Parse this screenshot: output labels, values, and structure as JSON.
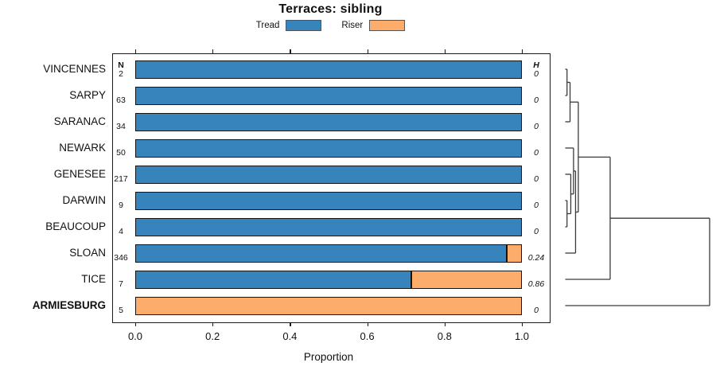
{
  "title": "Terraces: sibling",
  "legend": {
    "items": [
      {
        "label": "Tread",
        "color": "#3784bd"
      },
      {
        "label": "Riser",
        "color": "#fbad69"
      }
    ]
  },
  "columns": {
    "n_header": "N",
    "h_header": "H"
  },
  "x_axis": {
    "label": "Proportion",
    "ticks": [
      "0.0",
      "0.2",
      "0.4",
      "0.6",
      "0.8",
      "1.0"
    ],
    "range": [
      0,
      1
    ]
  },
  "rows": [
    {
      "label": "VINCENNES",
      "n": 2,
      "tread": 1.0,
      "riser": 0.0,
      "h": "0",
      "emphasis": false
    },
    {
      "label": "SARPY",
      "n": 63,
      "tread": 1.0,
      "riser": 0.0,
      "h": "0",
      "emphasis": false
    },
    {
      "label": "SARANAC",
      "n": 34,
      "tread": 1.0,
      "riser": 0.0,
      "h": "0",
      "emphasis": false
    },
    {
      "label": "NEWARK",
      "n": 50,
      "tread": 1.0,
      "riser": 0.0,
      "h": "0",
      "emphasis": false
    },
    {
      "label": "GENESEE",
      "n": 217,
      "tread": 1.0,
      "riser": 0.0,
      "h": "0",
      "emphasis": false
    },
    {
      "label": "DARWIN",
      "n": 9,
      "tread": 1.0,
      "riser": 0.0,
      "h": "0",
      "emphasis": false
    },
    {
      "label": "BEAUCOUP",
      "n": 4,
      "tread": 1.0,
      "riser": 0.0,
      "h": "0",
      "emphasis": false
    },
    {
      "label": "SLOAN",
      "n": 346,
      "tread": 0.96,
      "riser": 0.04,
      "h": "0.24",
      "emphasis": false
    },
    {
      "label": "TICE",
      "n": 7,
      "tread": 0.714,
      "riser": 0.286,
      "h": "0.86",
      "emphasis": false
    },
    {
      "label": "ARMIESBURG",
      "n": 5,
      "tread": 0.0,
      "riser": 1.0,
      "h": "0",
      "emphasis": true
    }
  ],
  "chart_data": {
    "type": "bar",
    "orientation": "horizontal",
    "stacked": true,
    "title": "Terraces: sibling",
    "xlabel": "Proportion",
    "xlim": [
      0,
      1
    ],
    "x_ticks": [
      0.0,
      0.2,
      0.4,
      0.6,
      0.8,
      1.0
    ],
    "legend_position": "top",
    "categories": [
      "VINCENNES",
      "SARPY",
      "SARANAC",
      "NEWARK",
      "GENESEE",
      "DARWIN",
      "BEAUCOUP",
      "SLOAN",
      "TICE",
      "ARMIESBURG"
    ],
    "series": [
      {
        "name": "Tread",
        "color": "#3784bd",
        "values": [
          1.0,
          1.0,
          1.0,
          1.0,
          1.0,
          1.0,
          1.0,
          0.96,
          0.714,
          0.0
        ]
      },
      {
        "name": "Riser",
        "color": "#fbad69",
        "values": [
          0.0,
          0.0,
          0.0,
          0.0,
          0.0,
          0.0,
          0.0,
          0.04,
          0.286,
          1.0
        ]
      }
    ],
    "n_values": [
      2,
      63,
      34,
      50,
      217,
      9,
      4,
      346,
      7,
      5
    ],
    "h_values": [
      "0",
      "0",
      "0",
      "0",
      "0",
      "0",
      "0",
      "0.24",
      "0.86",
      "0"
    ],
    "dendrogram": {
      "note": "right-side dendrogram; leaves indexed 0-9 in category order; merge k creates node 10+k; heights normalized 0-1",
      "merges": [
        [
          0,
          1,
          0.015
        ],
        [
          10,
          2,
          0.036
        ],
        [
          5,
          6,
          0.015
        ],
        [
          4,
          12,
          0.041
        ],
        [
          3,
          13,
          0.06
        ],
        [
          14,
          7,
          0.074
        ],
        [
          11,
          15,
          0.093
        ],
        [
          16,
          8,
          0.313
        ],
        [
          17,
          9,
          1.0
        ]
      ]
    }
  }
}
